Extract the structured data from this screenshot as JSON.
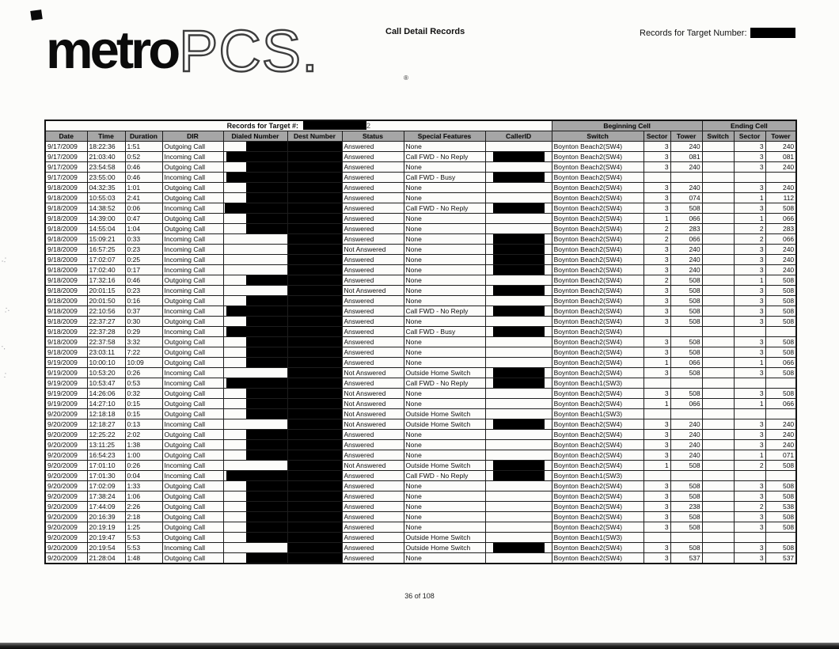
{
  "header": {
    "logo_metro": "metro",
    "logo_pcs": "PCS.",
    "logo_reg": "®",
    "doc_title": "Call Detail Records",
    "target_label": "Records for Target Number:"
  },
  "table": {
    "span_header": {
      "records_label": "Records for Target #:",
      "records_suffix": "2",
      "beginning_cell": "Beginning Cell",
      "ending_cell": "Ending Cell"
    },
    "columns": [
      "Date",
      "Time",
      "Duration",
      "DIR",
      "Dialed Number",
      "Dest Number",
      "Status",
      "Special Features",
      "CallerID",
      "Switch",
      "Sector",
      "Tower",
      "Switch",
      "Sector",
      "Tower"
    ],
    "all_dest_numbers_redacted": true,
    "colors": {
      "redaction": "#000000",
      "header_bg": "#a6a6a6"
    },
    "rows": [
      {
        "date": "9/17/2009",
        "time": "18:22:36",
        "dur": "1:51",
        "dir": "Outgoing Call",
        "dialed_redact": "mid",
        "status": "Answered",
        "features": "None",
        "cid_redact": false,
        "bswitch": "Boynton Beach2(SW4)",
        "bsector": "3",
        "btower": "240",
        "esector": "3",
        "etower": "240"
      },
      {
        "date": "9/17/2009",
        "time": "21:03:40",
        "dur": "0:52",
        "dir": "Incoming Call",
        "dialed_redact": "left",
        "status": "Answered",
        "features": "Call FWD - No Reply",
        "cid_redact": true,
        "bswitch": "Boynton Beach2(SW4)",
        "bsector": "3",
        "btower": "081",
        "esector": "3",
        "etower": "081"
      },
      {
        "date": "9/17/2009",
        "time": "23:54:58",
        "dur": "0:46",
        "dir": "Outgoing Call",
        "dialed_redact": "mid",
        "status": "Answered",
        "features": "None",
        "cid_redact": false,
        "bswitch": "Boynton Beach2(SW4)",
        "bsector": "3",
        "btower": "240",
        "esector": "3",
        "etower": "240"
      },
      {
        "date": "9/17/2009",
        "time": "23:55:00",
        "dur": "0:46",
        "dir": "Incoming Call",
        "dialed_redact": "left",
        "status": "Answered",
        "features": "Call FWD - Busy",
        "cid_redact": true,
        "bswitch": "Boynton Beach2(SW4)",
        "bsector": "",
        "btower": "",
        "esector": "",
        "etower": ""
      },
      {
        "date": "9/18/2009",
        "time": "04:32:35",
        "dur": "1:01",
        "dir": "Outgoing Call",
        "dialed_redact": "span",
        "status": "Answered",
        "features": "None",
        "cid_redact": false,
        "bswitch": "Boynton Beach2(SW4)",
        "bsector": "3",
        "btower": "240",
        "esector": "3",
        "etower": "240"
      },
      {
        "date": "9/18/2009",
        "time": "10:55:03",
        "dur": "2:41",
        "dir": "Outgoing Call",
        "dialed_redact": "mid",
        "status": "Answered",
        "features": "None",
        "cid_redact": false,
        "bswitch": "Boynton Beach2(SW4)",
        "bsector": "3",
        "btower": "074",
        "esector": "1",
        "etower": "112"
      },
      {
        "date": "9/18/2009",
        "time": "14:38:52",
        "dur": "0:06",
        "dir": "Incoming Call",
        "dialed_redact": "spanleft",
        "status": "Answered",
        "features": "Call FWD - No Reply",
        "cid_redact": true,
        "bswitch": "Boynton Beach2(SW4)",
        "bsector": "3",
        "btower": "508",
        "esector": "3",
        "etower": "508"
      },
      {
        "date": "9/18/2009",
        "time": "14:39:00",
        "dur": "0:47",
        "dir": "Outgoing Call",
        "dialed_redact": "mid",
        "status": "Answered",
        "features": "None",
        "cid_redact": false,
        "bswitch": "Boynton Beach2(SW4)",
        "bsector": "1",
        "btower": "066",
        "esector": "1",
        "etower": "066"
      },
      {
        "date": "9/18/2009",
        "time": "14:55:04",
        "dur": "1:04",
        "dir": "Outgoing Call",
        "dialed_redact": "mid",
        "status": "Answered",
        "features": "None",
        "cid_redact": false,
        "bswitch": "Boynton Beach2(SW4)",
        "bsector": "2",
        "btower": "283",
        "esector": "2",
        "etower": "283"
      },
      {
        "date": "9/18/2009",
        "time": "15:09:21",
        "dur": "0:33",
        "dir": "Incoming Call",
        "dialed_redact": "none",
        "status": "Answered",
        "features": "None",
        "cid_redact": true,
        "bswitch": "Boynton Beach2(SW4)",
        "bsector": "2",
        "btower": "066",
        "esector": "2",
        "etower": "066"
      },
      {
        "date": "9/18/2009",
        "time": "16:57:25",
        "dur": "0:23",
        "dir": "Incoming Call",
        "dialed_redact": "none",
        "status": "Not Answered",
        "features": "None",
        "cid_redact": true,
        "bswitch": "Boynton Beach2(SW4)",
        "bsector": "3",
        "btower": "240",
        "esector": "3",
        "etower": "240"
      },
      {
        "date": "9/18/2009",
        "time": "17:02:07",
        "dur": "0:25",
        "dir": "Incoming Call",
        "dialed_redact": "none",
        "status": "Answered",
        "features": "None",
        "cid_redact": true,
        "bswitch": "Boynton Beach2(SW4)",
        "bsector": "3",
        "btower": "240",
        "esector": "3",
        "etower": "240"
      },
      {
        "date": "9/18/2009",
        "time": "17:02:40",
        "dur": "0:17",
        "dir": "Incoming Call",
        "dialed_redact": "none",
        "status": "Answered",
        "features": "None",
        "cid_redact": true,
        "bswitch": "Boynton Beach2(SW4)",
        "bsector": "3",
        "btower": "240",
        "esector": "3",
        "etower": "240"
      },
      {
        "date": "9/18/2009",
        "time": "17:32:16",
        "dur": "0:46",
        "dir": "Outgoing Call",
        "dialed_redact": "mid",
        "status": "Answered",
        "features": "None",
        "cid_redact": false,
        "bswitch": "Boynton Beach2(SW4)",
        "bsector": "2",
        "btower": "508",
        "esector": "1",
        "etower": "508"
      },
      {
        "date": "9/18/2009",
        "time": "20:01:15",
        "dur": "0:23",
        "dir": "Incoming Call",
        "dialed_redact": "none",
        "status": "Not Answered",
        "features": "None",
        "cid_redact": true,
        "bswitch": "Boynton Beach2(SW4)",
        "bsector": "3",
        "btower": "508",
        "esector": "3",
        "etower": "508"
      },
      {
        "date": "9/18/2009",
        "time": "20:01:50",
        "dur": "0:16",
        "dir": "Outgoing Call",
        "dialed_redact": "mid",
        "status": "Answered",
        "features": "None",
        "cid_redact": false,
        "bswitch": "Boynton Beach2(SW4)",
        "bsector": "3",
        "btower": "508",
        "esector": "3",
        "etower": "508"
      },
      {
        "date": "9/18/2009",
        "time": "22:10:56",
        "dur": "0:37",
        "dir": "Incoming Call",
        "dialed_redact": "left",
        "status": "Answered",
        "features": "Call FWD - No Reply",
        "cid_redact": true,
        "bswitch": "Boynton Beach2(SW4)",
        "bsector": "3",
        "btower": "508",
        "esector": "3",
        "etower": "508"
      },
      {
        "date": "9/18/2009",
        "time": "22:37:27",
        "dur": "0:30",
        "dir": "Outgoing Call",
        "dialed_redact": "mid",
        "status": "Answered",
        "features": "None",
        "cid_redact": false,
        "bswitch": "Boynton Beach2(SW4)",
        "bsector": "3",
        "btower": "508",
        "esector": "3",
        "etower": "508"
      },
      {
        "date": "9/18/2009",
        "time": "22:37:28",
        "dur": "0:29",
        "dir": "Incoming Call",
        "dialed_redact": "left",
        "status": "Answered",
        "features": "Call FWD - Busy",
        "cid_redact": true,
        "bswitch": "Boynton Beach2(SW4)",
        "bsector": "",
        "btower": "",
        "esector": "",
        "etower": ""
      },
      {
        "date": "9/18/2009",
        "time": "22:37:58",
        "dur": "3:32",
        "dir": "Outgoing Call",
        "dialed_redact": "mid",
        "status": "Answered",
        "features": "None",
        "cid_redact": false,
        "bswitch": "Boynton Beach2(SW4)",
        "bsector": "3",
        "btower": "508",
        "esector": "3",
        "etower": "508"
      },
      {
        "date": "9/18/2009",
        "time": "23:03:11",
        "dur": "7:22",
        "dir": "Outgoing Call",
        "dialed_redact": "mid",
        "status": "Answered",
        "features": "None",
        "cid_redact": false,
        "bswitch": "Boynton Beach2(SW4)",
        "bsector": "3",
        "btower": "508",
        "esector": "3",
        "etower": "508"
      },
      {
        "date": "9/19/2009",
        "time": "10:00:10",
        "dur": "10:09",
        "dir": "Outgoing Call",
        "dialed_redact": "mid",
        "status": "Answered",
        "features": "None",
        "cid_redact": false,
        "bswitch": "Boynton Beach2(SW4)",
        "bsector": "1",
        "btower": "066",
        "esector": "1",
        "etower": "066"
      },
      {
        "date": "9/19/2009",
        "time": "10:53:20",
        "dur": "0:26",
        "dir": "Incoming Call",
        "dialed_redact": "none",
        "status": "Not Answered",
        "features": "Outside Home Switch",
        "cid_redact": true,
        "bswitch": "Boynton Beach2(SW4)",
        "bsector": "3",
        "btower": "508",
        "esector": "3",
        "etower": "508"
      },
      {
        "date": "9/19/2009",
        "time": "10:53:47",
        "dur": "0:53",
        "dir": "Incoming Call",
        "dialed_redact": "left",
        "status": "Answered",
        "features": "Call FWD - No Reply",
        "cid_redact": true,
        "bswitch": "Boynton Beach1(SW3)",
        "bsector": "",
        "btower": "",
        "esector": "",
        "etower": ""
      },
      {
        "date": "9/19/2009",
        "time": "14:26:06",
        "dur": "0:32",
        "dir": "Outgoing Call",
        "dialed_redact": "span",
        "status": "Not Answered",
        "features": "None",
        "cid_redact": false,
        "bswitch": "Boynton Beach2(SW4)",
        "bsector": "3",
        "btower": "508",
        "esector": "3",
        "etower": "508"
      },
      {
        "date": "9/19/2009",
        "time": "14:27:10",
        "dur": "0:15",
        "dir": "Outgoing Call",
        "dialed_redact": "span",
        "status": "Not Answered",
        "features": "None",
        "cid_redact": false,
        "bswitch": "Boynton Beach2(SW4)",
        "bsector": "1",
        "btower": "066",
        "esector": "1",
        "etower": "066"
      },
      {
        "date": "9/20/2009",
        "time": "12:18:18",
        "dur": "0:15",
        "dir": "Outgoing Call",
        "dialed_redact": "span",
        "status": "Not Answered",
        "features": "Outside Home Switch",
        "cid_redact": false,
        "bswitch": "Boynton Beach1(SW3)",
        "bsector": "",
        "btower": "",
        "esector": "",
        "etower": ""
      },
      {
        "date": "9/20/2009",
        "time": "12:18:27",
        "dur": "0:13",
        "dir": "Incoming Call",
        "dialed_redact": "none",
        "status": "Not Answered",
        "features": "Outside Home Switch",
        "cid_redact": true,
        "bswitch": "Boynton Beach2(SW4)",
        "bsector": "3",
        "btower": "240",
        "esector": "3",
        "etower": "240"
      },
      {
        "date": "9/20/2009",
        "time": "12:25:22",
        "dur": "2:02",
        "dir": "Outgoing Call",
        "dialed_redact": "mid",
        "status": "Answered",
        "features": "None",
        "cid_redact": false,
        "bswitch": "Boynton Beach2(SW4)",
        "bsector": "3",
        "btower": "240",
        "esector": "3",
        "etower": "240"
      },
      {
        "date": "9/20/2009",
        "time": "13:11:25",
        "dur": "1:38",
        "dir": "Outgoing Call",
        "dialed_redact": "span",
        "status": "Answered",
        "features": "None",
        "cid_redact": false,
        "bswitch": "Boynton Beach2(SW4)",
        "bsector": "3",
        "btower": "240",
        "esector": "3",
        "etower": "240"
      },
      {
        "date": "9/20/2009",
        "time": "16:54:23",
        "dur": "1:00",
        "dir": "Outgoing Call",
        "dialed_redact": "mid",
        "status": "Answered",
        "features": "None",
        "cid_redact": false,
        "bswitch": "Boynton Beach2(SW4)",
        "bsector": "3",
        "btower": "240",
        "esector": "1",
        "etower": "071"
      },
      {
        "date": "9/20/2009",
        "time": "17:01:10",
        "dur": "0:26",
        "dir": "Incoming Call",
        "dialed_redact": "none",
        "status": "Not Answered",
        "features": "Outside Home Switch",
        "cid_redact": true,
        "bswitch": "Boynton Beach2(SW4)",
        "bsector": "1",
        "btower": "508",
        "esector": "2",
        "etower": "508"
      },
      {
        "date": "9/20/2009",
        "time": "17:01:30",
        "dur": "0:04",
        "dir": "Incoming Call",
        "dialed_redact": "left",
        "status": "Answered",
        "features": "Call FWD - No Reply",
        "cid_redact": true,
        "bswitch": "Boynton Beach1(SW3)",
        "bsector": "",
        "btower": "",
        "esector": "",
        "etower": ""
      },
      {
        "date": "9/20/2009",
        "time": "17:02:09",
        "dur": "1:33",
        "dir": "Outgoing Call",
        "dialed_redact": "mid",
        "status": "Answered",
        "features": "None",
        "cid_redact": false,
        "bswitch": "Boynton Beach2(SW4)",
        "bsector": "3",
        "btower": "508",
        "esector": "3",
        "etower": "508"
      },
      {
        "date": "9/20/2009",
        "time": "17:38:24",
        "dur": "1:06",
        "dir": "Outgoing Call",
        "dialed_redact": "mid",
        "status": "Answered",
        "features": "None",
        "cid_redact": false,
        "bswitch": "Boynton Beach2(SW4)",
        "bsector": "3",
        "btower": "508",
        "esector": "3",
        "etower": "508"
      },
      {
        "date": "9/20/2009",
        "time": "17:44:09",
        "dur": "2:26",
        "dir": "Outgoing Call",
        "dialed_redact": "mid",
        "status": "Answered",
        "features": "None",
        "cid_redact": false,
        "bswitch": "Boynton Beach2(SW4)",
        "bsector": "3",
        "btower": "238",
        "esector": "2",
        "etower": "538"
      },
      {
        "date": "9/20/2009",
        "time": "20:16:39",
        "dur": "2:18",
        "dir": "Outgoing Call",
        "dialed_redact": "mid",
        "status": "Answered",
        "features": "None",
        "cid_redact": false,
        "bswitch": "Boynton Beach2(SW4)",
        "bsector": "3",
        "btower": "508",
        "esector": "3",
        "etower": "508"
      },
      {
        "date": "9/20/2009",
        "time": "20:19:19",
        "dur": "1:25",
        "dir": "Outgoing Call",
        "dialed_redact": "mid",
        "status": "Answered",
        "features": "None",
        "cid_redact": false,
        "bswitch": "Boynton Beach2(SW4)",
        "bsector": "3",
        "btower": "508",
        "esector": "3",
        "etower": "508"
      },
      {
        "date": "9/20/2009",
        "time": "20:19:47",
        "dur": "5:53",
        "dir": "Outgoing Call",
        "dialed_redact": "span",
        "status": "Answered",
        "features": "Outside Home Switch",
        "cid_redact": false,
        "bswitch": "Boynton Beach1(SW3)",
        "bsector": "",
        "btower": "",
        "esector": "",
        "etower": ""
      },
      {
        "date": "9/20/2009",
        "time": "20:19:54",
        "dur": "5:53",
        "dir": "Incoming Call",
        "dialed_redact": "none",
        "status": "Answered",
        "features": "Outside Home Switch",
        "cid_redact": true,
        "bswitch": "Boynton Beach2(SW4)",
        "bsector": "3",
        "btower": "508",
        "esector": "3",
        "etower": "508"
      },
      {
        "date": "9/20/2009",
        "time": "21:28:04",
        "dur": "1:48",
        "dir": "Outgoing Call",
        "dialed_redact": "mid",
        "status": "Answered",
        "features": "None",
        "cid_redact": false,
        "bswitch": "Boynton Beach2(SW4)",
        "bsector": "3",
        "btower": "537",
        "esector": "3",
        "etower": "537"
      }
    ]
  },
  "footer": {
    "page_indicator": "36 of 108"
  }
}
